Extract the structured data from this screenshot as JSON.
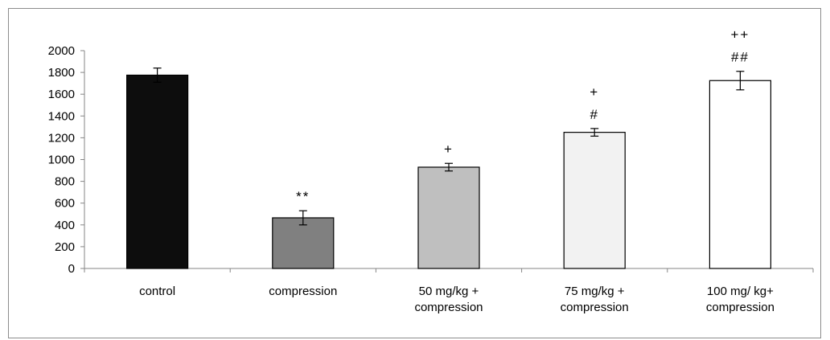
{
  "chart_data": {
    "type": "bar",
    "title": "",
    "xlabel": "",
    "ylabel": "",
    "ylim": [
      0,
      2000
    ],
    "yticks": [
      0,
      200,
      400,
      600,
      800,
      1000,
      1200,
      1400,
      1600,
      1800,
      2000
    ],
    "categories": [
      [
        "control"
      ],
      [
        "compression"
      ],
      [
        "50 mg/kg +",
        "compression"
      ],
      [
        "75 mg/kg +",
        "compression"
      ],
      [
        "100 mg/ kg+",
        "compression"
      ]
    ],
    "values": [
      1775,
      465,
      930,
      1250,
      1725
    ],
    "errors": [
      65,
      65,
      35,
      35,
      85
    ],
    "bar_colors": [
      "#0d0d0d",
      "#808080",
      "#bfbfbf",
      "#f2f2f2",
      "#ffffff"
    ],
    "annotations": [
      [],
      [
        "**"
      ],
      [
        "+"
      ],
      [
        "+",
        "#"
      ],
      [
        "++",
        "##"
      ]
    ],
    "grid": false,
    "legend": "none"
  }
}
